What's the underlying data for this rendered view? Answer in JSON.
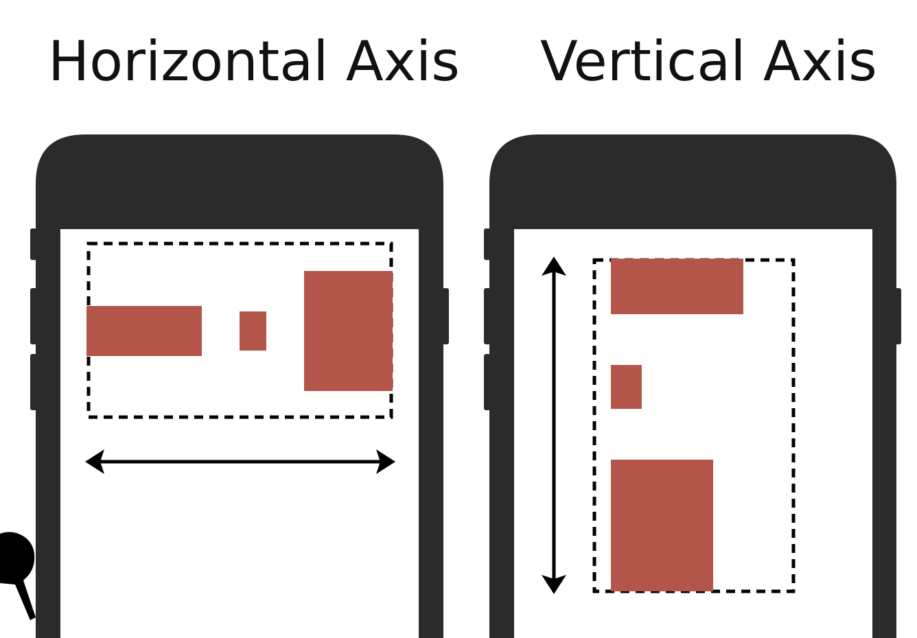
{
  "panels": {
    "left": {
      "title": "Horizontal Axis"
    },
    "right": {
      "title": "Vertical Axis"
    }
  },
  "colors": {
    "phone_body": "#2b2b2b",
    "screen": "#ffffff",
    "box": "#b3554a",
    "stroke": "#000000"
  }
}
